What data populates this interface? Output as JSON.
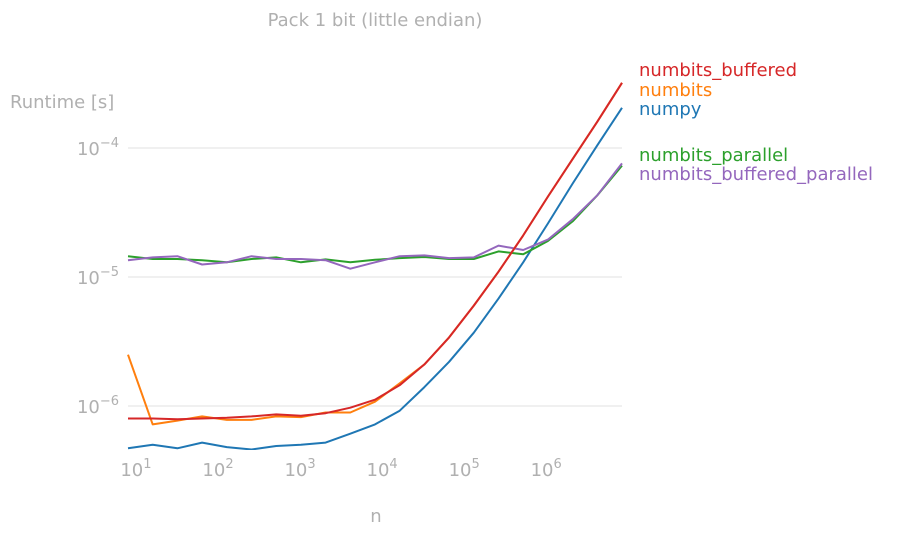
{
  "chart_data": {
    "type": "line",
    "title": "Pack 1 bit (little endian)",
    "xlabel": "n",
    "ylabel": "Runtime [s]",
    "xscale": "log",
    "yscale": "log",
    "xlim": [
      8,
      8388608
    ],
    "ylim": [
      4.5e-07,
      0.0002
    ],
    "grid": "horizontal",
    "legend": "right, labels ordered by final value",
    "x": [
      8,
      16,
      32,
      64,
      128,
      256,
      512,
      1024,
      2048,
      4096,
      8192,
      16384,
      32768,
      65536,
      131072,
      262144,
      524288,
      1048576,
      2097152,
      4194304,
      8388608
    ],
    "x_ticks": [
      {
        "value": 10,
        "label": "10",
        "exp": "1"
      },
      {
        "value": 100,
        "label": "10",
        "exp": "2"
      },
      {
        "value": 1000,
        "label": "10",
        "exp": "3"
      },
      {
        "value": 10000,
        "label": "10",
        "exp": "4"
      },
      {
        "value": 100000,
        "label": "10",
        "exp": "5"
      },
      {
        "value": 1000000,
        "label": "10",
        "exp": "6"
      }
    ],
    "y_ticks": [
      {
        "value": 1e-06,
        "label": "10",
        "exp": "−6"
      },
      {
        "value": 1e-05,
        "label": "10",
        "exp": "−5"
      },
      {
        "value": 0.0001,
        "label": "10",
        "exp": "−4"
      }
    ],
    "series": [
      {
        "name": "numbits_buffered",
        "color": "#d62728",
        "values": [
          8e-07,
          8e-07,
          7.9e-07,
          8e-07,
          8.1e-07,
          8.3e-07,
          8.6e-07,
          8.4e-07,
          8.8e-07,
          9.7e-07,
          1.12e-06,
          1.45e-06,
          2.1e-06,
          3.4e-06,
          6e-06,
          1.1e-05,
          2.1e-05,
          4.2e-05,
          8.2e-05,
          0.00016,
          0.00032
        ]
      },
      {
        "name": "numbits",
        "color": "#ff7f0e",
        "values": [
          2.5e-06,
          7.2e-07,
          7.7e-07,
          8.3e-07,
          7.8e-07,
          7.8e-07,
          8.3e-07,
          8.2e-07,
          8.9e-07,
          8.9e-07,
          1.08e-06,
          1.5e-06,
          2.1e-06,
          3.4e-06,
          6e-06,
          1.1e-05,
          2.1e-05,
          4.2e-05,
          8.2e-05,
          0.00016,
          0.00032
        ]
      },
      {
        "name": "numpy",
        "color": "#1f77b4",
        "values": [
          4.7e-07,
          5e-07,
          4.7e-07,
          5.2e-07,
          4.8e-07,
          4.6e-07,
          4.9e-07,
          5e-07,
          5.2e-07,
          6.1e-07,
          7.2e-07,
          9.2e-07,
          1.4e-06,
          2.2e-06,
          3.7e-06,
          6.8e-06,
          1.3e-05,
          2.6e-05,
          5.3e-05,
          0.000105,
          0.000205
        ]
      },
      {
        "name": "numbits_parallel",
        "color": "#2ca02c",
        "values": [
          1.45e-05,
          1.38e-05,
          1.38e-05,
          1.35e-05,
          1.3e-05,
          1.38e-05,
          1.42e-05,
          1.3e-05,
          1.37e-05,
          1.3e-05,
          1.36e-05,
          1.4e-05,
          1.43e-05,
          1.38e-05,
          1.38e-05,
          1.58e-05,
          1.5e-05,
          1.9e-05,
          2.7e-05,
          4.3e-05,
          7.3e-05
        ]
      },
      {
        "name": "numbits_buffered_parallel",
        "color": "#9467bd",
        "values": [
          1.35e-05,
          1.42e-05,
          1.45e-05,
          1.25e-05,
          1.3e-05,
          1.45e-05,
          1.38e-05,
          1.38e-05,
          1.35e-05,
          1.16e-05,
          1.3e-05,
          1.45e-05,
          1.47e-05,
          1.4e-05,
          1.42e-05,
          1.75e-05,
          1.62e-05,
          1.95e-05,
          2.8e-05,
          4.3e-05,
          7.6e-05
        ]
      }
    ]
  }
}
